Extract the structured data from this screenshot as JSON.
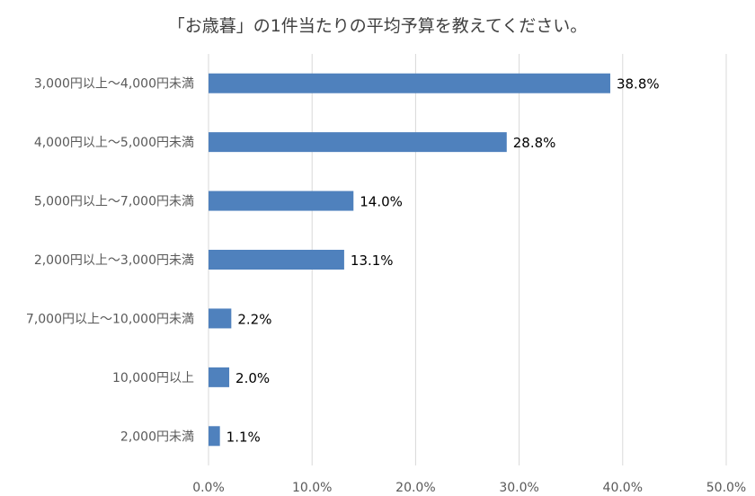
{
  "chart_data": {
    "type": "bar",
    "orientation": "horizontal",
    "title": "「お歳暮」の1件当たりの平均予算を教えてください。",
    "categories": [
      "3,000円以上～4,000円未満",
      "4,000円以上～5,000円未満",
      "5,000円以上～7,000円未満",
      "2,000円以上～3,000円未満",
      "7,000円以上～10,000円未満",
      "10,000円以上",
      "2,000円未満"
    ],
    "values": [
      38.8,
      28.8,
      14.0,
      13.1,
      2.2,
      2.0,
      1.1
    ],
    "data_labels": [
      "38.8%",
      "28.8%",
      "14.0%",
      "13.1%",
      "2.2%",
      "2.0%",
      "1.1%"
    ],
    "x_ticks": [
      0,
      10,
      20,
      30,
      40,
      50
    ],
    "x_tick_labels": [
      "0.0%",
      "10.0%",
      "20.0%",
      "30.0%",
      "40.0%",
      "50.0%"
    ],
    "xlim": [
      0,
      50
    ],
    "grid": true,
    "legend": "none",
    "bar_color": "#4F81BD",
    "grid_color": "#D9D9D9"
  }
}
